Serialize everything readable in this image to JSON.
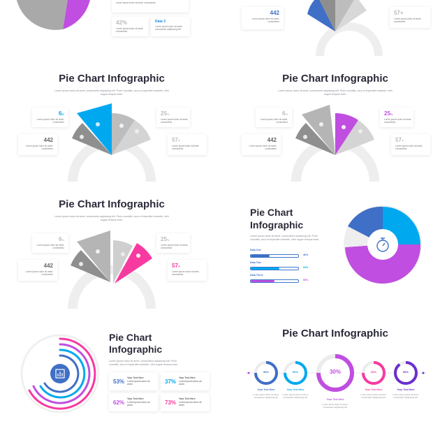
{
  "colors": {
    "blue": "#00a8f0",
    "purple": "#c04ee0",
    "pink": "#f73aa0",
    "navy": "#3f6fc6",
    "gray": "#a9a9a9",
    "light_gray": "#c8c8c8",
    "violet": "#6a2fd0"
  },
  "top_left": {
    "card_top": {
      "value": "",
      "text": "Lorem ipsum dolor sit amet, consectetur"
    },
    "card_bottom": {
      "value": "42%",
      "text": "Lorem ipsum dolor sit amet, consectetur"
    },
    "card_data": {
      "value": "Data 3",
      "text": "Lorem ipsum dolor sit amet, consectetur adipiscing elit."
    }
  },
  "top_right": {
    "card_left": {
      "value": "442",
      "text": "Lorem ipsum dolor sit amet, consectetur"
    },
    "card_right": {
      "value": "57+",
      "text": "Lorem ipsum dolor sit amet, consectetur"
    }
  },
  "slide_blue": {
    "title": "Pie Chart Infographic",
    "subtitle": "Lorem ipsum dolor sit amet, consectetur adipiscing elit. Proin convallis, arcu et imperdiet molestie, nibh augue tempus enim.",
    "cards": [
      {
        "value": "6",
        "unit": "%",
        "text": "Lorem ipsum dolor sit amet, consectetur"
      },
      {
        "value": "25",
        "unit": "%",
        "text": "Lorem ipsum dolor sit amet, consectetur"
      },
      {
        "value": "442",
        "unit": "",
        "text": "Lorem ipsum dolor sit amet, consectetur"
      },
      {
        "value": "57",
        "unit": "+",
        "text": "Lorem ipsum dolor sit amet, consectetur"
      }
    ]
  },
  "slide_purple": {
    "title": "Pie Chart Infographic",
    "subtitle": "Lorem ipsum dolor sit amet, consectetur adipiscing elit. Proin convallis, arcu et imperdiet molestie, nibh augue tempus enim.",
    "cards": [
      {
        "value": "6",
        "unit": "%",
        "text": "Lorem ipsum dolor sit amet, consectetur"
      },
      {
        "value": "25",
        "unit": "%",
        "text": "Lorem ipsum dolor sit amet, consectetur"
      },
      {
        "value": "442",
        "unit": "",
        "text": "Lorem ipsum dolor sit amet, consectetur"
      },
      {
        "value": "57",
        "unit": "+",
        "text": "Lorem ipsum dolor sit amet, consectetur"
      }
    ]
  },
  "slide_pink": {
    "title": "Pie Chart Infographic",
    "subtitle": "Lorem ipsum dolor sit amet, consectetur adipiscing elit. Proin convallis, arcu et imperdiet molestie, nibh augue tempus enim.",
    "cards": [
      {
        "value": "6",
        "unit": "%",
        "text": "Lorem ipsum dolor sit amet, consectetur"
      },
      {
        "value": "25",
        "unit": "%",
        "text": "Lorem ipsum dolor sit amet, consectetur"
      },
      {
        "value": "442",
        "unit": "",
        "text": "Lorem ipsum dolor sit amet, consectetur"
      },
      {
        "value": "57",
        "unit": "+",
        "text": "Lorem ipsum dolor sit amet, consectetur"
      }
    ]
  },
  "slide_bars": {
    "title_line1": "Pie Chart",
    "title_line2": "Infographic",
    "subtitle": "Lorem ipsum dolor sit amet, consectetur adipiscing elit. Proin convallis, arcu et imperdiet molestie, nibh augue tempus enim.",
    "items": [
      {
        "label": "Data One",
        "value": 40,
        "display": "40%",
        "color": "#3f6fc6"
      },
      {
        "label": "Data Two",
        "value": 60,
        "display": "60%",
        "color": "#00a8f0"
      },
      {
        "label": "Data Three",
        "value": 50,
        "display": "50%",
        "color": "#c04ee0"
      }
    ]
  },
  "slide_rings": {
    "title_line1": "Pie Chart",
    "title_line2": "Infographic",
    "subtitle": "Lorem ipsum dolor sit amet, consectetur adipiscing elit. Proin convallis, arcu et imperdiet molestie, nibh augue tempus enim.",
    "stats": [
      {
        "value": "53%",
        "title": "Your Text Here",
        "text": "Lorem ipsum dolor sit amet.",
        "color": "#3f6fc6"
      },
      {
        "value": "37%",
        "title": "Your Text Here",
        "text": "Lorem ipsum dolor sit amet.",
        "color": "#00a8f0"
      },
      {
        "value": "62%",
        "title": "Your Text Here",
        "text": "Lorem ipsum dolor sit amet.",
        "color": "#c04ee0"
      },
      {
        "value": "73%",
        "title": "Your Text Here",
        "text": "Lorem ipsum dolor sit amet.",
        "color": "#f73aa0"
      }
    ]
  },
  "slide_donuts": {
    "title": "Pie Chart Infographic",
    "items": [
      {
        "value": 50,
        "display": "50%",
        "caption": "Your Text Here",
        "text": "Lorem ipsum dolor sit amet, consectetur adipiscing elit.",
        "color": "#3f6fc6"
      },
      {
        "value": 50,
        "display": "50%",
        "caption": "Your Text Here",
        "text": "Lorem ipsum dolor sit amet, consectetur adipiscing elit.",
        "color": "#00a8f0"
      },
      {
        "value": 30,
        "display": "30%",
        "caption": "Your Text Here",
        "text": "Lorem ipsum dolor sit amet, consectetur adipiscing elit.",
        "color": "#c04ee0"
      },
      {
        "value": 60,
        "display": "60%",
        "caption": "Your Text Here",
        "text": "Lorem ipsum dolor sit amet, consectetur adipiscing elit.",
        "color": "#f73aa0"
      },
      {
        "value": 90,
        "display": "90%",
        "caption": "Your Text Here",
        "text": "Lorem ipsum dolor sit amet, consectetur adipiscing elit.",
        "color": "#6a2fd0"
      }
    ]
  }
}
